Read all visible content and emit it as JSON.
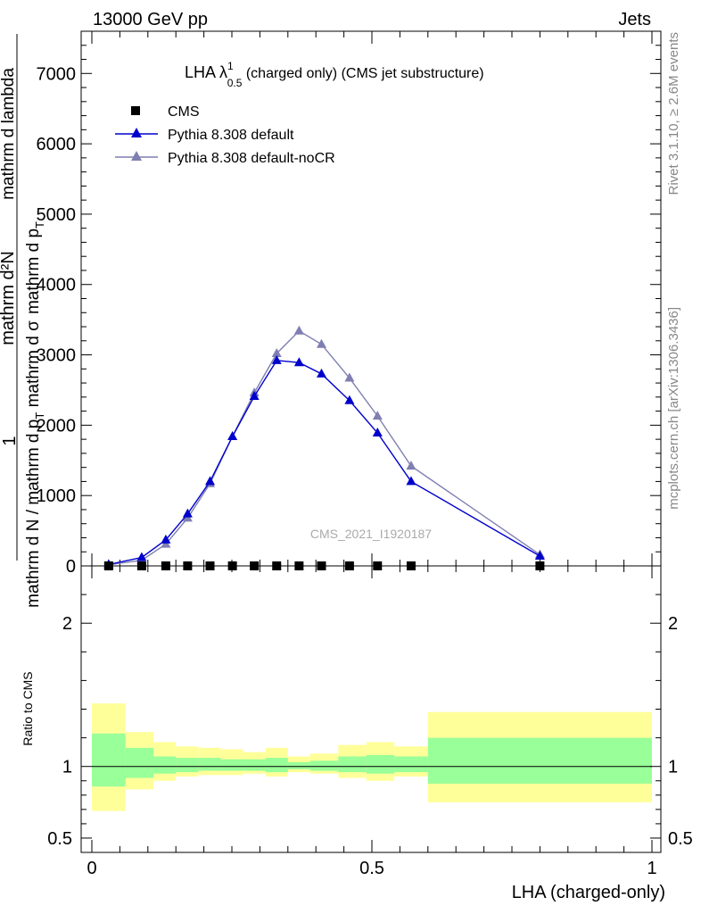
{
  "header": {
    "left": "13000 GeV pp",
    "right": "Jets"
  },
  "side_labels": {
    "rivet": "Rivet 3.1.10, ≥ 2.6M events",
    "mcplots": "mcplots.cern.ch [arXiv:1306.3436]"
  },
  "watermark": "CMS_2021_I1920187",
  "title": {
    "main": "LHA λ",
    "sup": "1",
    "sub": "0.5",
    "rest": " (charged only) (CMS jet substructure)"
  },
  "ylabel": {
    "numerator": "mathrm d²N",
    "numerator2": "mathrm d p",
    "numerator2_sub": "T",
    "numerator3": " mathrm d lambda",
    "left": "1",
    "denominator": "mathrm d N / mathrm d p",
    "denominator_sub": "T",
    "denominator2": " mathrm d σ"
  },
  "xlabel": "LHA (charged-only)",
  "ratio_ylabel": "Ratio to CMS",
  "colors": {
    "pythia_default": "#0000cc",
    "pythia_nocr": "#7f7fb2",
    "band_inner": "#99ff99",
    "band_outer": "#ffff99"
  },
  "chart_data": {
    "type": "line",
    "x_ticks": [
      "0",
      "0.5",
      "1"
    ],
    "xlim": [
      0,
      1
    ],
    "y_ticks": [
      "0",
      "1000",
      "2000",
      "3000",
      "4000",
      "5000",
      "6000",
      "7000"
    ],
    "ylim": [
      0,
      7600
    ],
    "ratio_ticks": [
      "0.5",
      "1",
      "2"
    ],
    "ratio_ylim": [
      0.4,
      2.4
    ],
    "legend": [
      "CMS",
      "Pythia 8.308 default",
      "Pythia 8.308 default-noCR"
    ],
    "series": [
      {
        "name": "CMS",
        "marker": "square",
        "x": [
          0.03,
          0.089,
          0.132,
          0.171,
          0.211,
          0.251,
          0.29,
          0.33,
          0.37,
          0.41,
          0.46,
          0.51,
          0.57,
          0.8
        ],
        "values": [
          0,
          0,
          0,
          0,
          0,
          0,
          0,
          0,
          0,
          0,
          0,
          0,
          0,
          0
        ]
      },
      {
        "name": "Pythia 8.308 default",
        "marker": "triangle",
        "x": [
          0.03,
          0.089,
          0.132,
          0.171,
          0.211,
          0.251,
          0.29,
          0.33,
          0.37,
          0.41,
          0.46,
          0.51,
          0.57,
          0.8
        ],
        "values": [
          20,
          120,
          370,
          740,
          1200,
          1840,
          2410,
          2920,
          2890,
          2730,
          2350,
          1890,
          1200,
          140
        ]
      },
      {
        "name": "Pythia 8.308 default-noCR",
        "marker": "triangle",
        "x": [
          0.03,
          0.089,
          0.132,
          0.171,
          0.211,
          0.251,
          0.29,
          0.33,
          0.37,
          0.41,
          0.46,
          0.51,
          0.57,
          0.8
        ],
        "values": [
          15,
          80,
          310,
          680,
          1170,
          1840,
          2460,
          3020,
          3340,
          3150,
          2670,
          2130,
          1420,
          160
        ]
      }
    ],
    "ratio_bands": [
      {
        "x0": 0.0,
        "x1": 0.06,
        "inner": [
          0.86,
          1.23
        ],
        "outer": [
          0.69,
          1.44
        ]
      },
      {
        "x0": 0.06,
        "x1": 0.11,
        "inner": [
          0.92,
          1.13
        ],
        "outer": [
          0.84,
          1.24
        ]
      },
      {
        "x0": 0.11,
        "x1": 0.15,
        "inner": [
          0.95,
          1.07
        ],
        "outer": [
          0.9,
          1.17
        ]
      },
      {
        "x0": 0.15,
        "x1": 0.19,
        "inner": [
          0.96,
          1.06
        ],
        "outer": [
          0.93,
          1.14
        ]
      },
      {
        "x0": 0.19,
        "x1": 0.23,
        "inner": [
          0.97,
          1.06
        ],
        "outer": [
          0.94,
          1.13
        ]
      },
      {
        "x0": 0.23,
        "x1": 0.27,
        "inner": [
          0.97,
          1.05
        ],
        "outer": [
          0.94,
          1.12
        ]
      },
      {
        "x0": 0.27,
        "x1": 0.31,
        "inner": [
          0.97,
          1.05
        ],
        "outer": [
          0.95,
          1.1
        ]
      },
      {
        "x0": 0.31,
        "x1": 0.35,
        "inner": [
          0.96,
          1.06
        ],
        "outer": [
          0.93,
          1.13
        ]
      },
      {
        "x0": 0.35,
        "x1": 0.39,
        "inner": [
          0.98,
          1.03
        ],
        "outer": [
          0.96,
          1.07
        ]
      },
      {
        "x0": 0.39,
        "x1": 0.44,
        "inner": [
          0.97,
          1.04
        ],
        "outer": [
          0.95,
          1.09
        ]
      },
      {
        "x0": 0.44,
        "x1": 0.49,
        "inner": [
          0.96,
          1.07
        ],
        "outer": [
          0.92,
          1.15
        ]
      },
      {
        "x0": 0.49,
        "x1": 0.54,
        "inner": [
          0.95,
          1.08
        ],
        "outer": [
          0.9,
          1.17
        ]
      },
      {
        "x0": 0.54,
        "x1": 0.6,
        "inner": [
          0.96,
          1.07
        ],
        "outer": [
          0.93,
          1.14
        ]
      },
      {
        "x0": 0.6,
        "x1": 1.0,
        "inner": [
          0.88,
          1.2
        ],
        "outer": [
          0.75,
          1.38
        ]
      }
    ]
  }
}
